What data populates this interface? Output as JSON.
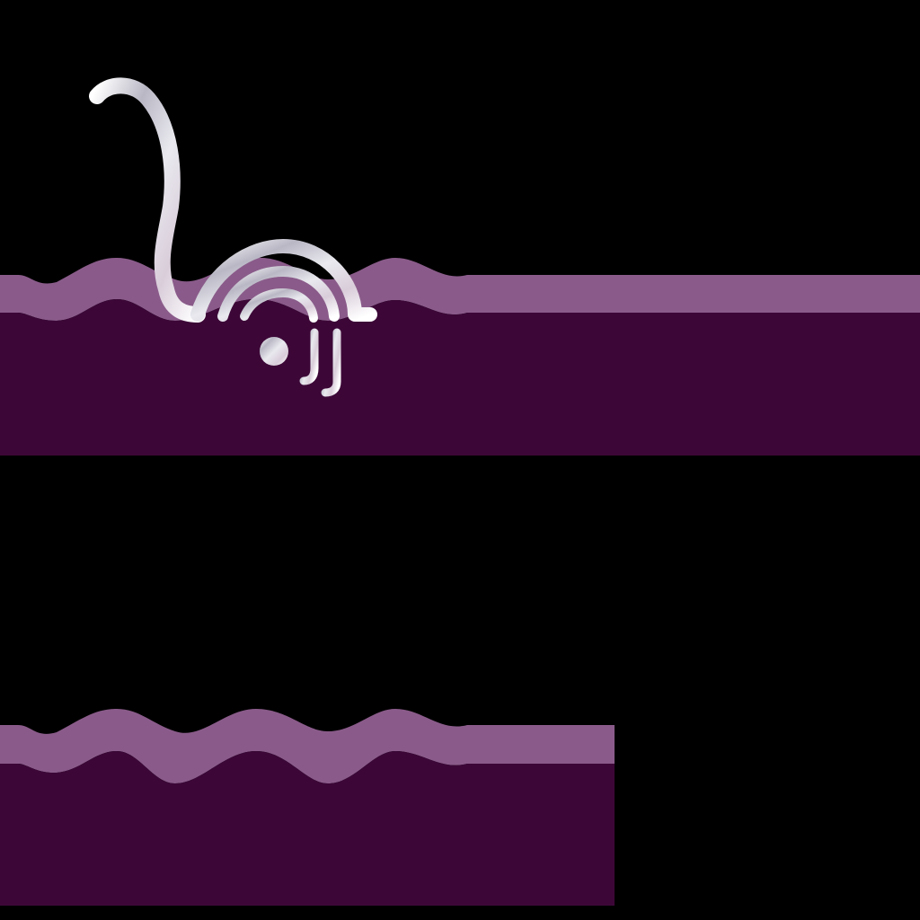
{
  "colors": {
    "background": "#000000",
    "wave_light": "#8a5b8a",
    "water_dark": "#3c0737",
    "creature_base": "#e9e9ef",
    "creature_shade": "#b9b7c4",
    "creature_highlight": "#ffffff",
    "creature_tint": "#d9cdda"
  },
  "scene": {
    "upper_band": {
      "name": "upper-water-band"
    },
    "lower_band": {
      "name": "lower-water-band"
    },
    "creature": {
      "name": "sea-serpent",
      "icon": "sea-serpent-icon",
      "material": "mother-of-pearl"
    }
  }
}
